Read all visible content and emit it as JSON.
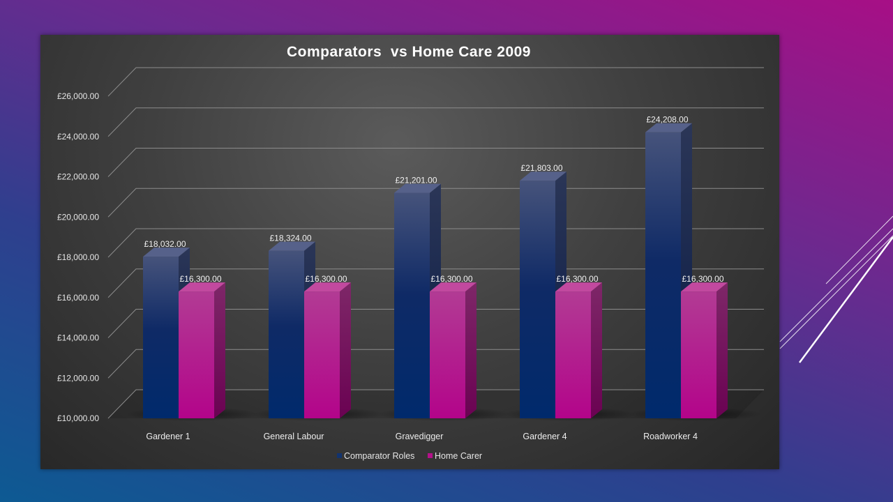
{
  "colors": {
    "comparator": "#12336e",
    "home_carer": "#b4118a",
    "gridline": "#8c8c8c"
  },
  "chart_data": {
    "type": "bar",
    "title": "Comparators  vs Home Care 2009",
    "categories": [
      "Gardener 1",
      "General Labour",
      "Gravedigger",
      "Gardener 4",
      "Roadworker 4"
    ],
    "series": [
      {
        "name": "Comparator Roles",
        "values": [
          18032,
          18324,
          21201,
          21803,
          24208
        ],
        "labels": [
          "£18,032.00",
          "£18,324.00",
          "£21,201.00",
          "£21,803.00",
          "£24,208.00"
        ]
      },
      {
        "name": "Home Carer",
        "values": [
          16300,
          16300,
          16300,
          16300,
          16300
        ],
        "labels": [
          "£16,300.00",
          "£16,300.00",
          "£16,300.00",
          "£16,300.00",
          "£16,300.00"
        ]
      }
    ],
    "ylim": [
      10000,
      26000
    ],
    "yticks": [
      10000,
      12000,
      14000,
      16000,
      18000,
      20000,
      22000,
      24000,
      26000
    ],
    "ytick_labels": [
      "£10,000.00",
      "£12,000.00",
      "£14,000.00",
      "£16,000.00",
      "£18,000.00",
      "£20,000.00",
      "£22,000.00",
      "£24,000.00",
      "£26,000.00"
    ],
    "xlabel": "",
    "ylabel": "",
    "grid": true,
    "legend_position": "bottom"
  }
}
